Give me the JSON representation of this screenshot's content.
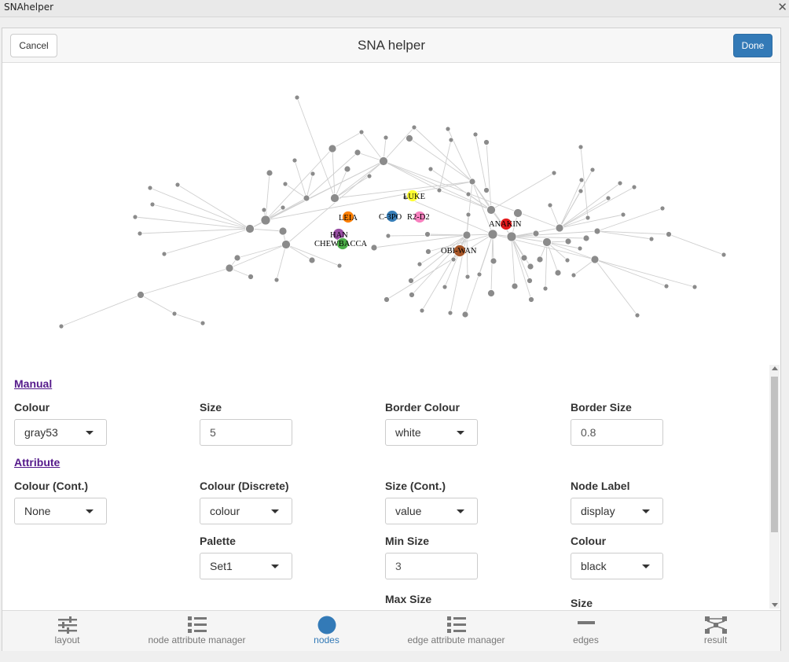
{
  "window": {
    "title": "SNAhelper",
    "close_glyph": "✕"
  },
  "header": {
    "cancel_label": "Cancel",
    "title": "SNA helper",
    "done_label": "Done"
  },
  "graph": {
    "node_color": "#8b8b8b",
    "labeled_nodes": [
      {
        "label": "LUKE",
        "color": "#ffff33"
      },
      {
        "label": "LEIA",
        "color": "#ff7f00"
      },
      {
        "label": "C-3PO",
        "color": "#377eb8"
      },
      {
        "label": "R2-D2",
        "color": "#f781bf"
      },
      {
        "label": "ANAKIN",
        "color": "#e41a1c"
      },
      {
        "label": "HAN",
        "color": "#984ea3"
      },
      {
        "label": "CHEWBACCA",
        "color": "#4daf4a"
      },
      {
        "label": "OBI-WAN",
        "color": "#a65628"
      }
    ]
  },
  "manual": {
    "heading": "Manual",
    "colour_label": "Colour",
    "colour_value": "gray53",
    "size_label": "Size",
    "size_value": "5",
    "border_colour_label": "Border Colour",
    "border_colour_value": "white",
    "border_size_label": "Border Size",
    "border_size_value": "0.8"
  },
  "attribute": {
    "heading": "Attribute",
    "colour_cont_label": "Colour (Cont.)",
    "colour_cont_value": "None",
    "colour_disc_label": "Colour (Discrete)",
    "colour_disc_value": "colour",
    "size_cont_label": "Size (Cont.)",
    "size_cont_value": "value",
    "node_label_label": "Node Label",
    "node_label_value": "display",
    "palette_label": "Palette",
    "palette_value": "Set1",
    "min_size_label": "Min Size",
    "min_size_value": "3",
    "label_colour_label": "Colour",
    "label_colour_value": "black",
    "max_size_label": "Max Size",
    "label_size_label": "Size"
  },
  "tabs": [
    {
      "label": "layout",
      "icon": "sliders-icon"
    },
    {
      "label": "node attribute manager",
      "icon": "list-ol-icon"
    },
    {
      "label": "nodes",
      "icon": "circle-icon"
    },
    {
      "label": "edge attribute manager",
      "icon": "list-ol-icon"
    },
    {
      "label": "edges",
      "icon": "minus-icon"
    },
    {
      "label": "result",
      "icon": "network-icon"
    }
  ],
  "colors": {
    "accent": "#337ab7",
    "link": "#551a8b"
  }
}
